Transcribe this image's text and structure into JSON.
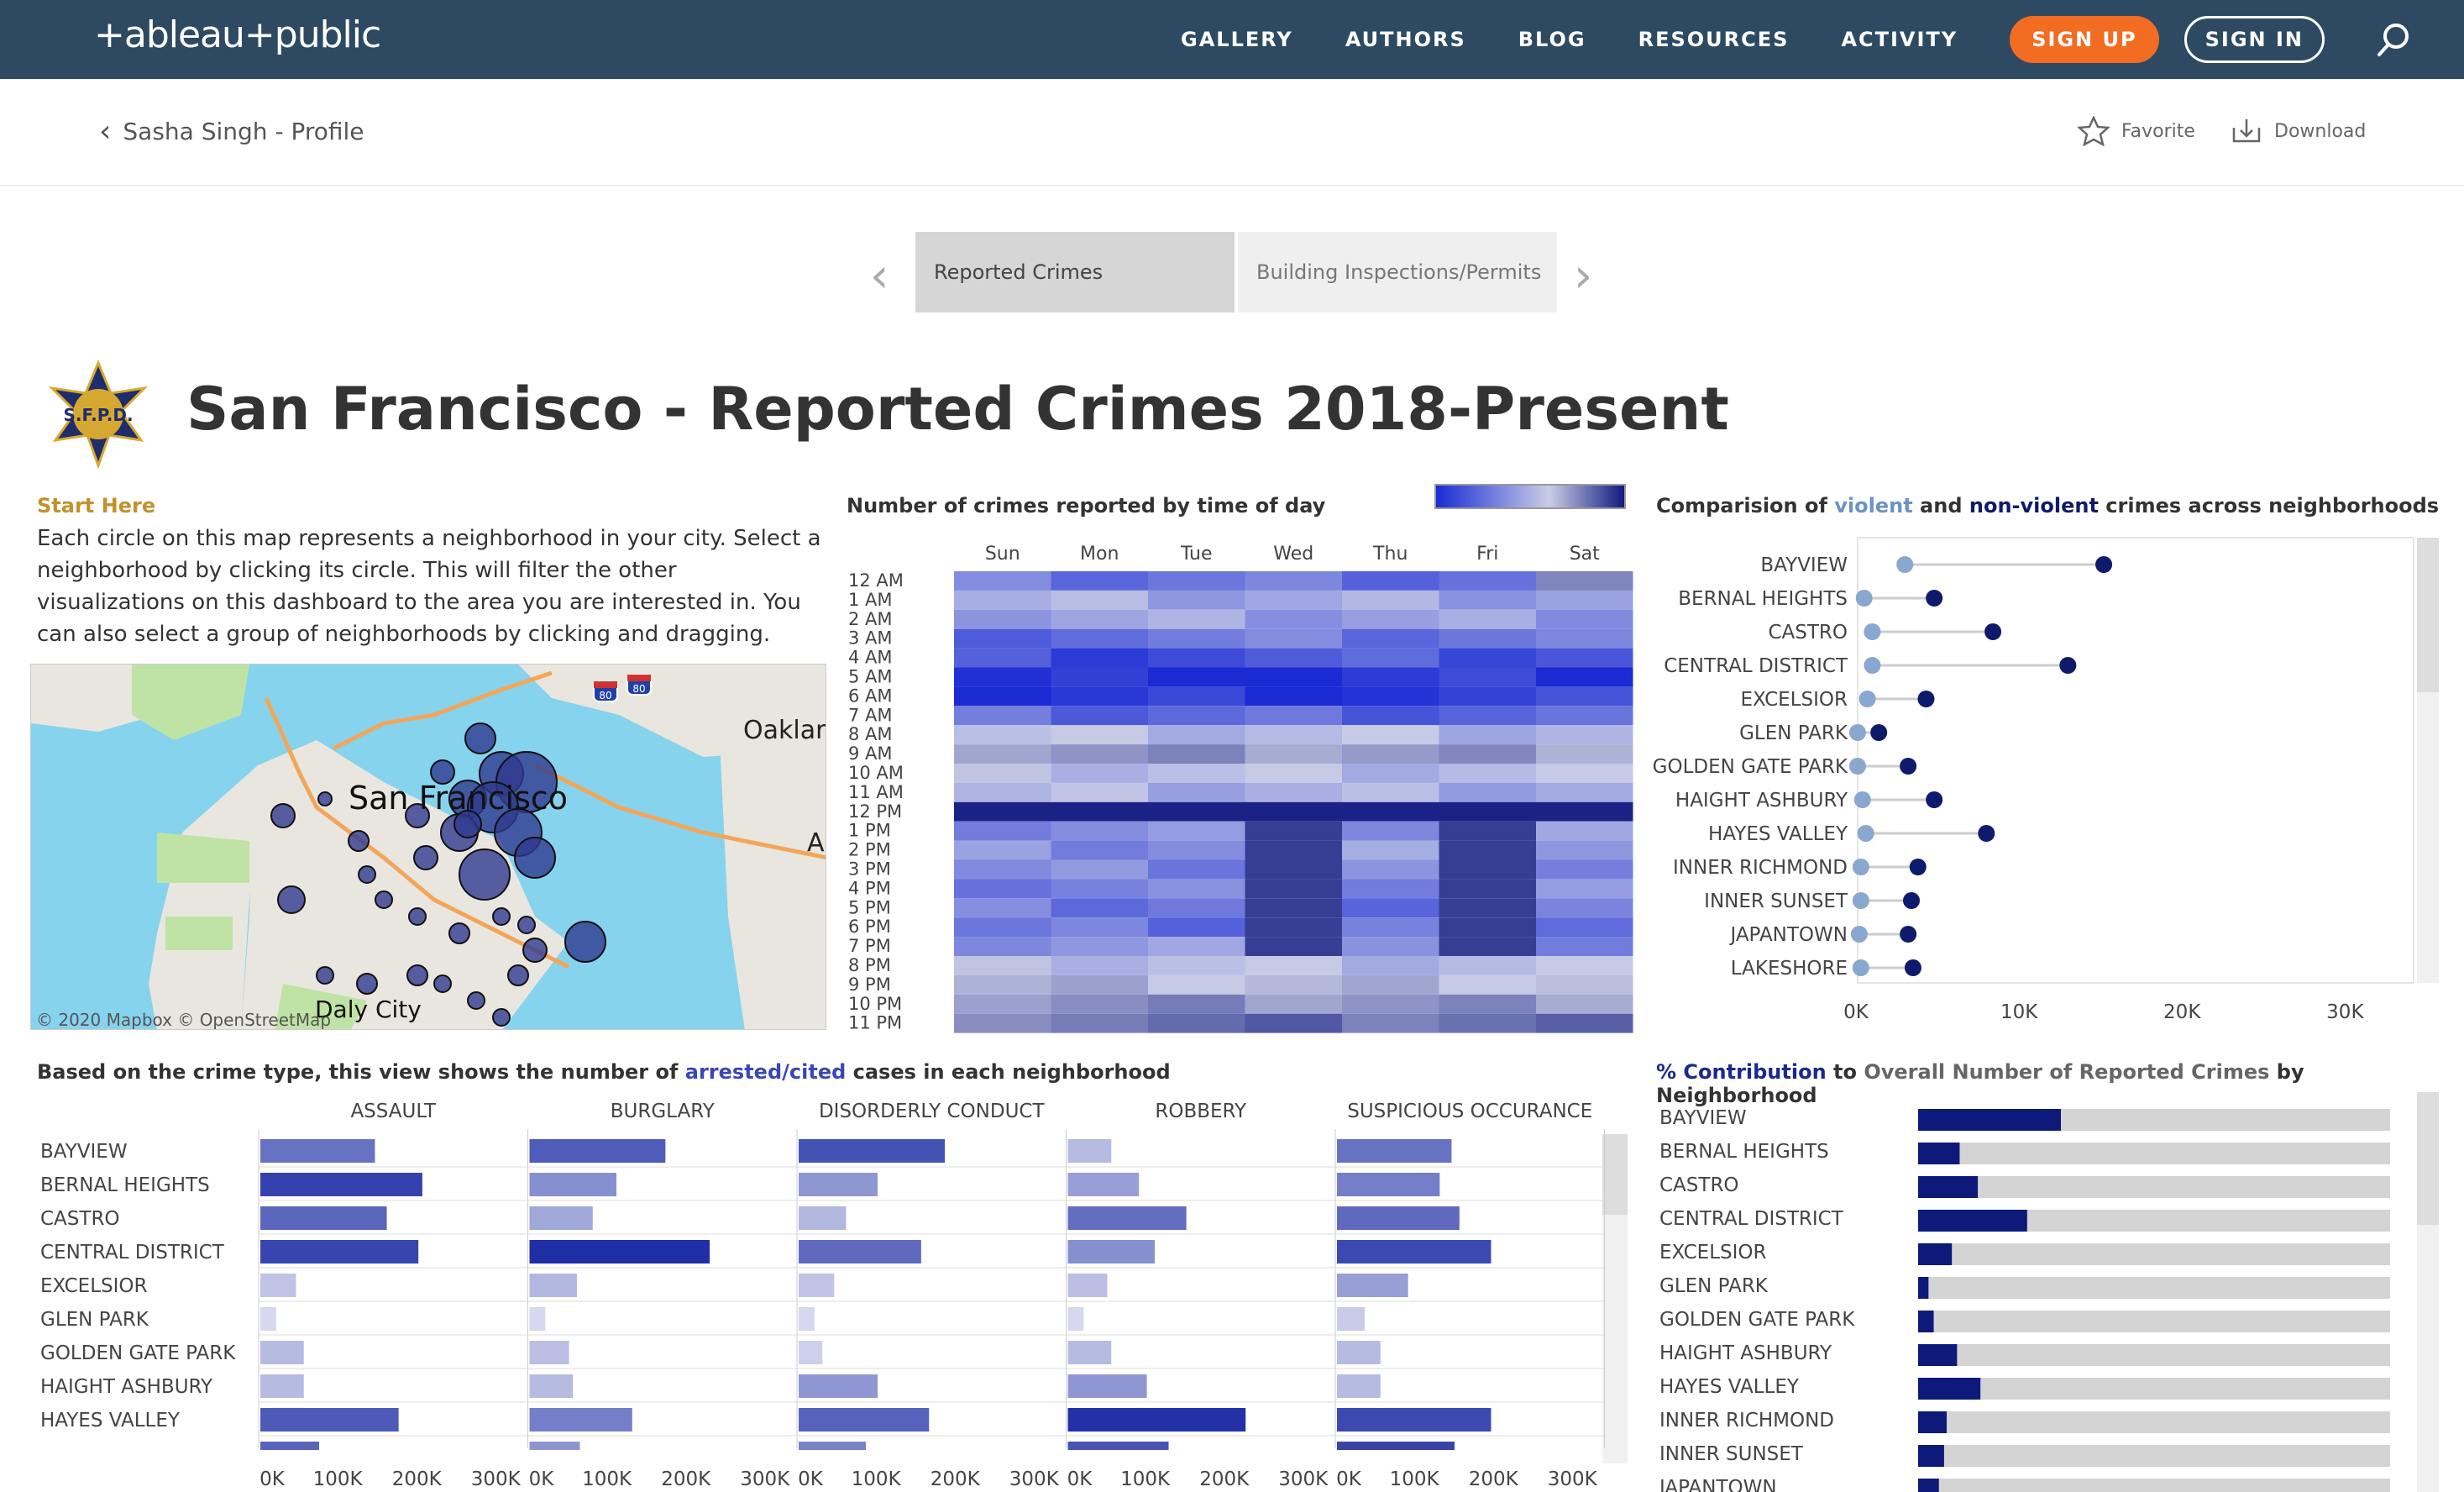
{
  "nav": {
    "logo": "+ableau+public",
    "links": [
      "GALLERY",
      "AUTHORS",
      "BLOG",
      "RESOURCES",
      "ACTIVITY"
    ],
    "signup": "SIGN UP",
    "signin": "SIGN IN"
  },
  "subbar": {
    "back": "Sasha Singh - Profile",
    "favorite": "Favorite",
    "download": "Download"
  },
  "tabs": [
    "Reported Crimes",
    "Building Inspections/Permits"
  ],
  "title": "San Francisco - Reported Crimes 2018-Present",
  "badge": "S.F.P.D.",
  "start": {
    "heading": "Start Here",
    "text": "Each circle on this map represents a neighborhood in your city. Select a neighborhood by clicking its circle. This will filter the other visualizations on this dashboard to the area you are interested in. You can also select a group of neighborhoods by clicking and dragging."
  },
  "map": {
    "labels": [
      "San Francisco",
      "Oaklar",
      "Daly City",
      "A"
    ],
    "shields": [
      "80",
      "80"
    ],
    "attribution": "© 2020 Mapbox  © OpenStreetMap"
  },
  "heatmap": {
    "title": "Number of crimes reported by time of day",
    "days": [
      "Sun",
      "Mon",
      "Tue",
      "Wed",
      "Thu",
      "Fri",
      "Sat"
    ],
    "hours": [
      "12 AM",
      "1 AM",
      "2 AM",
      "3 AM",
      "4 AM",
      "5 AM",
      "6 AM",
      "7 AM",
      "8 AM",
      "9 AM",
      "10 AM",
      "11 AM",
      "12 PM",
      "1 PM",
      "2 PM",
      "3 PM",
      "4 PM",
      "5 PM",
      "6 PM",
      "7 PM",
      "8 PM",
      "9 PM",
      "10 PM",
      "11 PM"
    ]
  },
  "dotplot": {
    "title_pre": "Comparision of ",
    "title_violent": "violent",
    "title_and": " and ",
    "title_nonviolent": "non-violent",
    "title_post": " crimes across neighborhoods",
    "colors": {
      "violent": "#89a7cf",
      "nonviolent": "#0e1a6b"
    },
    "x_ticks": [
      "0K",
      "10K",
      "20K",
      "30K"
    ],
    "xlim": [
      0,
      34000
    ],
    "rows": [
      {
        "name": "BAYVIEW",
        "violent": 3000,
        "nonviolent": 15200
      },
      {
        "name": "BERNAL HEIGHTS",
        "violent": 500,
        "nonviolent": 4800
      },
      {
        "name": "CASTRO",
        "violent": 1000,
        "nonviolent": 8400
      },
      {
        "name": "CENTRAL DISTRICT",
        "violent": 1000,
        "nonviolent": 13000
      },
      {
        "name": "EXCELSIOR",
        "violent": 700,
        "nonviolent": 4300
      },
      {
        "name": "GLEN PARK",
        "violent": 100,
        "nonviolent": 1400
      },
      {
        "name": "GOLDEN GATE PARK",
        "violent": 100,
        "nonviolent": 3200
      },
      {
        "name": "HAIGHT ASHBURY",
        "violent": 400,
        "nonviolent": 4800
      },
      {
        "name": "HAYES VALLEY",
        "violent": 600,
        "nonviolent": 8000
      },
      {
        "name": "INNER RICHMOND",
        "violent": 300,
        "nonviolent": 3800
      },
      {
        "name": "INNER SUNSET",
        "violent": 300,
        "nonviolent": 3400
      },
      {
        "name": "JAPANTOWN",
        "violent": 200,
        "nonviolent": 3200
      },
      {
        "name": "LAKESHORE",
        "violent": 300,
        "nonviolent": 3500
      }
    ]
  },
  "arrested": {
    "title_pre": "Based on the crime type, this view shows the number of ",
    "title_hl": "arrested/cited",
    "title_post": " cases in each neighborhood",
    "columns": [
      "ASSAULT",
      "BURGLARY",
      "DISORDERLY CONDUCT",
      "ROBBERY",
      "SUSPICIOUS OCCURANCE"
    ],
    "x_ticks": [
      "0K",
      "100K",
      "200K",
      "300K"
    ],
    "xlim": [
      0,
      330000
    ],
    "rows": [
      {
        "name": "BAYVIEW",
        "values": [
          145000,
          172000,
          185000,
          55000,
          145000
        ]
      },
      {
        "name": "BERNAL HEIGHTS",
        "values": [
          205000,
          110000,
          100000,
          90000,
          130000
        ]
      },
      {
        "name": "CASTRO",
        "values": [
          160000,
          80000,
          60000,
          150000,
          155000
        ]
      },
      {
        "name": "CENTRAL DISTRICT",
        "values": [
          200000,
          228000,
          155000,
          110000,
          195000
        ]
      },
      {
        "name": "EXCELSIOR",
        "values": [
          45000,
          60000,
          45000,
          50000,
          90000
        ]
      },
      {
        "name": "GLEN PARK",
        "values": [
          20000,
          20000,
          20000,
          20000,
          35000
        ]
      },
      {
        "name": "GOLDEN GATE PARK",
        "values": [
          55000,
          50000,
          30000,
          55000,
          55000
        ]
      },
      {
        "name": "HAIGHT ASHBURY",
        "values": [
          55000,
          55000,
          100000,
          100000,
          55000
        ]
      },
      {
        "name": "HAYES VALLEY",
        "values": [
          175000,
          130000,
          165000,
          225000,
          195000
        ]
      }
    ]
  },
  "contribution": {
    "title_hl": "% Contribution",
    "title_mid": " to ",
    "title_gray": "Overall Number of Reported Crimes",
    "title_post": " by Neighborhood",
    "rows": [
      {
        "name": "BAYVIEW",
        "value": 5.5
      },
      {
        "name": "BERNAL HEIGHTS",
        "value": 1.6
      },
      {
        "name": "CASTRO",
        "value": 2.3
      },
      {
        "name": "CENTRAL DISTRICT",
        "value": 4.2
      },
      {
        "name": "EXCELSIOR",
        "value": 1.3
      },
      {
        "name": "GLEN PARK",
        "value": 0.4
      },
      {
        "name": "GOLDEN GATE PARK",
        "value": 0.6
      },
      {
        "name": "HAIGHT ASHBURY",
        "value": 1.5
      },
      {
        "name": "HAYES VALLEY",
        "value": 2.4
      },
      {
        "name": "INNER RICHMOND",
        "value": 1.1
      },
      {
        "name": "INNER SUNSET",
        "value": 1.0
      },
      {
        "name": "JAPANTOWN",
        "value": 0.8
      }
    ]
  }
}
